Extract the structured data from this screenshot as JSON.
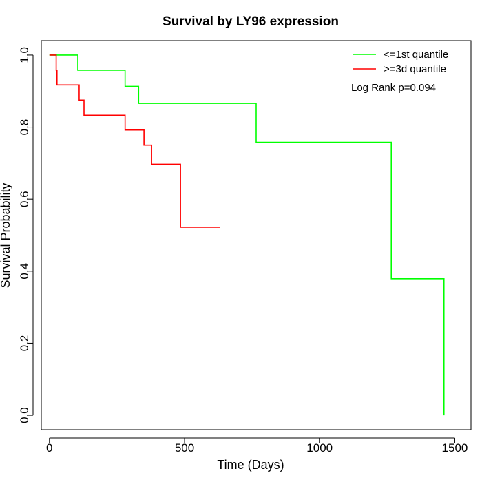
{
  "chart_data": {
    "type": "line",
    "step": true,
    "title": "Survival by LY96 expression",
    "xlabel": "Time (Days)",
    "ylabel": "Survival Probability",
    "xlim": [
      -30,
      1560
    ],
    "ylim": [
      -0.04,
      1.04
    ],
    "xticks": [
      0,
      500,
      1000,
      1500
    ],
    "yticks": [
      0.0,
      0.2,
      0.4,
      0.6,
      0.8,
      1.0
    ],
    "xtick_labels": [
      "0",
      "500",
      "1000",
      "1500"
    ],
    "ytick_labels": [
      "0.0",
      "0.2",
      "0.4",
      "0.6",
      "0.8",
      "1.0"
    ],
    "grid": false,
    "legend_position": "top-right",
    "annotation": "Log Rank p=0.094",
    "series": [
      {
        "name": "<=1st quantile",
        "color": "#00ff00",
        "x": [
          0,
          105,
          280,
          330,
          765,
          1265,
          1460
        ],
        "y": [
          1.0,
          0.958,
          0.913,
          0.866,
          0.758,
          0.379,
          0.0
        ]
      },
      {
        "name": ">=3d quantile",
        "color": "#ff0000",
        "x": [
          0,
          25,
          28,
          110,
          128,
          280,
          350,
          378,
          485,
          630
        ],
        "y": [
          1.0,
          0.958,
          0.917,
          0.875,
          0.833,
          0.792,
          0.75,
          0.697,
          0.522,
          0.522
        ]
      }
    ]
  }
}
